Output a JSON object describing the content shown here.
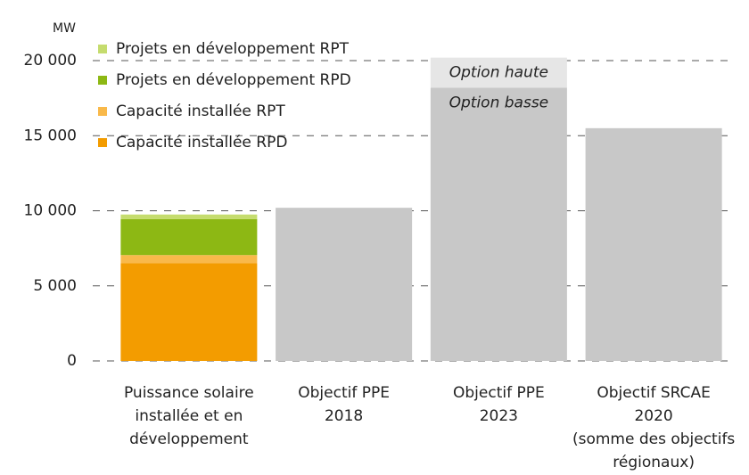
{
  "chart_data": {
    "type": "stacked_bar",
    "ylabel": "MW",
    "categories": [
      "Puissance solaire\ninstallée et en\ndéveloppement",
      "Objectif PPE\n2018",
      "Objectif PPE\n2023",
      "Objectif SRCAE\n2020\n(somme des objectifs\nrégionaux)"
    ],
    "series": [
      {
        "name": "Capacité installée RPD",
        "color": "#f39c00",
        "values": [
          6500,
          null,
          null,
          null
        ]
      },
      {
        "name": "Capacité installée RPT",
        "color": "#f9b94a",
        "values": [
          550,
          null,
          null,
          null
        ]
      },
      {
        "name": "Projets en développement RPD",
        "color": "#8db814",
        "values": [
          2400,
          null,
          null,
          null
        ]
      },
      {
        "name": "Projets en développement RPT",
        "color": "#c5dc6e",
        "values": [
          300,
          null,
          null,
          null
        ]
      },
      {
        "color": "#c8c8c8",
        "values": [
          null,
          10200,
          18200,
          15500
        ]
      },
      {
        "color": "#e6e6e6",
        "values": [
          null,
          null,
          2000,
          null
        ]
      }
    ],
    "annotations": [
      {
        "text": "Option basse",
        "category": 2,
        "series": 4
      },
      {
        "text": "Option haute",
        "category": 2,
        "series": 5
      }
    ],
    "ylim": [
      0,
      20000
    ],
    "yticks": [
      {
        "value": 0,
        "label": "0"
      },
      {
        "value": 5000,
        "label": "5 000"
      },
      {
        "value": 10000,
        "label": "10 000"
      },
      {
        "value": 15000,
        "label": "15 000"
      },
      {
        "value": 20000,
        "label": "20 000"
      }
    ],
    "grid": true,
    "legend": "top-left"
  }
}
